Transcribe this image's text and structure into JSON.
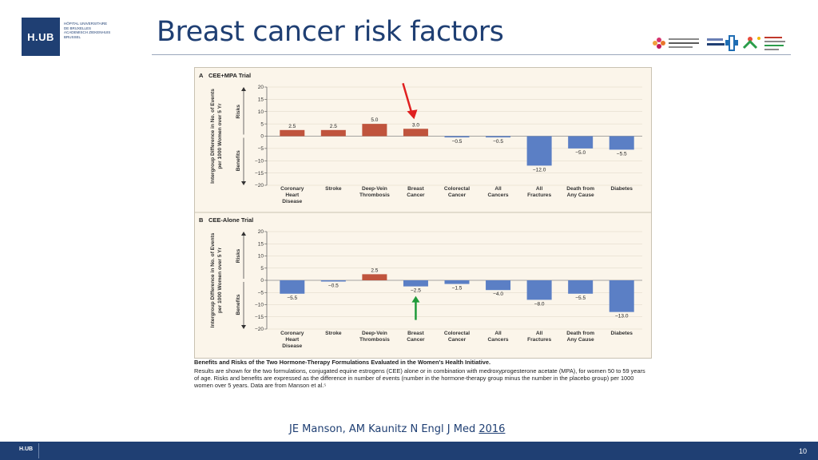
{
  "header": {
    "logo_text": "H.UB",
    "institution_lines": [
      "Hôpital Universitaire",
      "de Bruxelles",
      "Academisch Ziekenhuis",
      "Brussel"
    ],
    "title": "Breast cancer risk factors",
    "partner_logos": [
      "Institut Jules Bordet",
      "Hôpital Erasme",
      "Hôpital Universitaire des Enfants Reine Fabiola"
    ]
  },
  "chart_data": [
    {
      "type": "bar",
      "panel": "A",
      "title": "CEE+MPA Trial",
      "ylabel": "Intergroup Difference in No. of Events per 1000 Women over 5 Yr",
      "risks_label": "Risks",
      "benefits_label": "Benefits",
      "ylim": [
        -20,
        20
      ],
      "yticks": [
        20,
        15,
        10,
        5,
        0,
        -5,
        -10,
        -15,
        -20
      ],
      "categories": [
        [
          "Coronary",
          "Heart",
          "Disease"
        ],
        [
          "Stroke"
        ],
        [
          "Deep-Vein",
          "Thrombosis"
        ],
        [
          "Breast",
          "Cancer"
        ],
        [
          "Colorectal",
          "Cancer"
        ],
        [
          "All",
          "Cancers"
        ],
        [
          "All",
          "Fractures"
        ],
        [
          "Death from",
          "Any Cause"
        ],
        [
          "Diabetes"
        ]
      ],
      "values": [
        2.5,
        2.5,
        5.0,
        3.0,
        -0.5,
        -0.5,
        -12.0,
        -5.0,
        -5.5
      ],
      "value_labels": [
        "2.5",
        "2.5",
        "5.0",
        "3.0",
        "−0.5",
        "−0.5",
        "−12.0",
        "−5.0",
        "−5.5"
      ],
      "colors": {
        "risk": "#c0543d",
        "benefit": "#5b7fc5"
      },
      "grid": true,
      "annotation": {
        "type": "arrow",
        "color": "#e02020",
        "category_index": 3
      }
    },
    {
      "type": "bar",
      "panel": "B",
      "title": "CEE-Alone Trial",
      "ylabel": "Intergroup Difference in No. of Events per 1000 Women over 5 Yr",
      "risks_label": "Risks",
      "benefits_label": "Benefits",
      "ylim": [
        -20,
        20
      ],
      "yticks": [
        20,
        15,
        10,
        5,
        0,
        -5,
        -10,
        -15,
        -20
      ],
      "categories": [
        [
          "Coronary",
          "Heart",
          "Disease"
        ],
        [
          "Stroke"
        ],
        [
          "Deep-Vein",
          "Thrombosis"
        ],
        [
          "Breast",
          "Cancer"
        ],
        [
          "Colorectal",
          "Cancer"
        ],
        [
          "All",
          "Cancers"
        ],
        [
          "All",
          "Fractures"
        ],
        [
          "Death from",
          "Any Cause"
        ],
        [
          "Diabetes"
        ]
      ],
      "values": [
        -5.5,
        -0.5,
        2.5,
        -2.5,
        -1.5,
        -4.0,
        -8.0,
        -5.5,
        -13.0
      ],
      "value_labels": [
        "−5.5",
        "−0.5",
        "2.5",
        "−2.5",
        "−1.5",
        "−4.0",
        "−8.0",
        "−5.5",
        "−13.0"
      ],
      "colors": {
        "risk": "#c0543d",
        "benefit": "#5b7fc5"
      },
      "grid": true,
      "annotation": {
        "type": "arrow",
        "color": "#1f9a3a",
        "category_index": 3
      }
    }
  ],
  "caption": {
    "title": "Benefits and Risks of the Two Hormone-Therapy Formulations Evaluated in the Women's Health Initiative.",
    "body": "Results are shown for the two formulations, conjugated equine estrogens (CEE) alone or in combination with medroxyprogesterone acetate (MPA), for women 50 to 59 years of age. Risks and benefits are expressed as the difference in number of events (number in the hormone-therapy group minus the number in the placebo group) per 1000 women over 5 years. Data are from Manson et al.⁵"
  },
  "citation": {
    "text": "JE Manson, AM Kaunitz N Engl J Med ",
    "year": "2016"
  },
  "footer": {
    "logo_text": "H.UB",
    "page_number": "10"
  }
}
